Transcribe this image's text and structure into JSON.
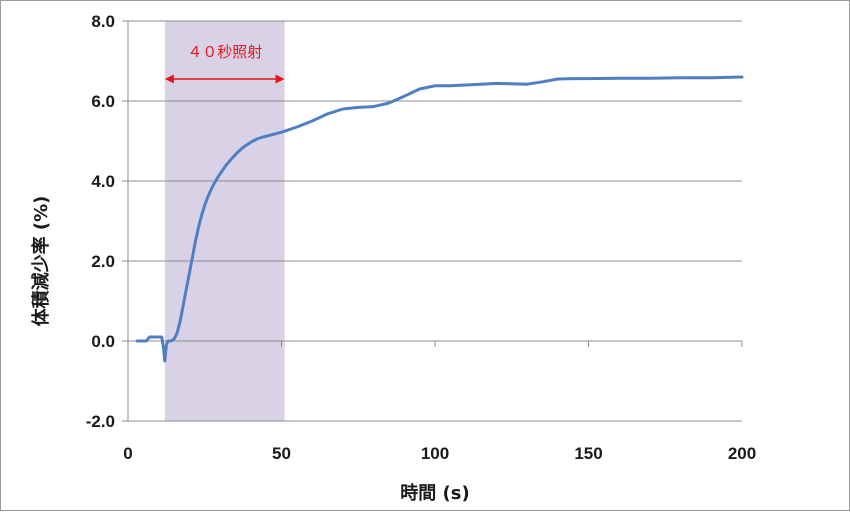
{
  "chart_data": {
    "type": "line",
    "title": "",
    "xlabel": "時間 (s)",
    "ylabel": "体積減少率 (%)",
    "xlim": [
      0,
      200
    ],
    "ylim": [
      -2.0,
      8.0
    ],
    "x_ticks": [
      "0",
      "50",
      "100",
      "150",
      "200"
    ],
    "y_ticks": [
      "-2.0",
      "0.0",
      "2.0",
      "4.0",
      "6.0",
      "8.0"
    ],
    "grid": "horizontal",
    "legend": "none",
    "shaded_region": {
      "x_start": 12,
      "x_end": 51,
      "color": "#d9d2e6"
    },
    "annotation": {
      "text": "４０秒照射",
      "x_start": 12,
      "x_end": 51,
      "y": 6.5,
      "color": "#e8141b"
    },
    "series": [
      {
        "color": "#4f7fc1",
        "points": [
          [
            3,
            0.0
          ],
          [
            6,
            0.0
          ],
          [
            7,
            0.1
          ],
          [
            10,
            0.1
          ],
          [
            11,
            0.1
          ],
          [
            11.6,
            -0.2
          ],
          [
            12,
            -0.5
          ],
          [
            12.5,
            -0.1
          ],
          [
            13,
            0.0
          ],
          [
            14,
            0.0
          ],
          [
            15,
            0.05
          ],
          [
            16,
            0.2
          ],
          [
            17,
            0.5
          ],
          [
            18,
            0.9
          ],
          [
            19,
            1.3
          ],
          [
            20,
            1.7
          ],
          [
            21,
            2.1
          ],
          [
            22,
            2.5
          ],
          [
            23,
            2.85
          ],
          [
            24,
            3.15
          ],
          [
            25,
            3.4
          ],
          [
            26,
            3.6
          ],
          [
            27,
            3.78
          ],
          [
            28,
            3.93
          ],
          [
            29,
            4.06
          ],
          [
            30,
            4.18
          ],
          [
            32,
            4.4
          ],
          [
            34,
            4.58
          ],
          [
            36,
            4.74
          ],
          [
            38,
            4.87
          ],
          [
            40,
            4.97
          ],
          [
            42,
            5.05
          ],
          [
            44,
            5.1
          ],
          [
            46,
            5.14
          ],
          [
            48,
            5.18
          ],
          [
            50,
            5.22
          ],
          [
            55,
            5.35
          ],
          [
            60,
            5.5
          ],
          [
            65,
            5.68
          ],
          [
            70,
            5.8
          ],
          [
            75,
            5.84
          ],
          [
            80,
            5.86
          ],
          [
            85,
            5.95
          ],
          [
            90,
            6.12
          ],
          [
            95,
            6.3
          ],
          [
            100,
            6.38
          ],
          [
            105,
            6.38
          ],
          [
            110,
            6.4
          ],
          [
            115,
            6.42
          ],
          [
            120,
            6.44
          ],
          [
            125,
            6.43
          ],
          [
            130,
            6.42
          ],
          [
            135,
            6.48
          ],
          [
            140,
            6.55
          ],
          [
            145,
            6.56
          ],
          [
            150,
            6.56
          ],
          [
            160,
            6.57
          ],
          [
            170,
            6.57
          ],
          [
            180,
            6.58
          ],
          [
            190,
            6.58
          ],
          [
            200,
            6.6
          ]
        ]
      }
    ]
  }
}
